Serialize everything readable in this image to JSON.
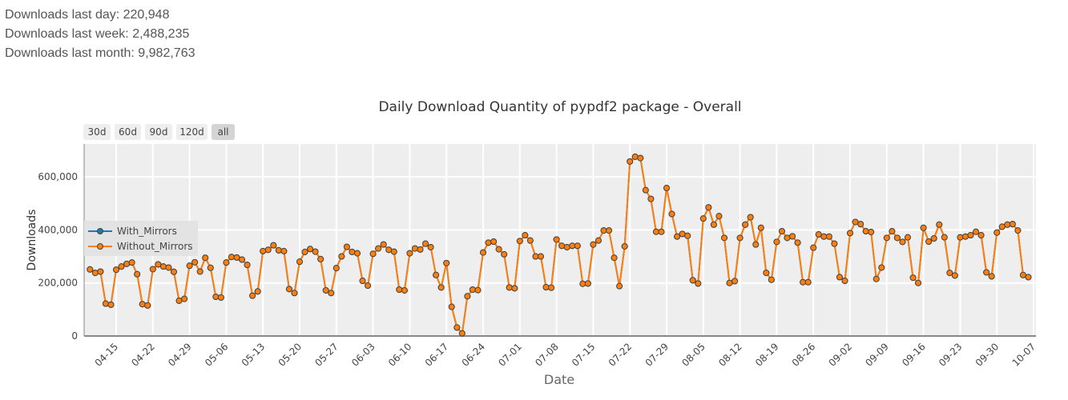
{
  "stats": {
    "day": "Downloads last day: 220,948",
    "week": "Downloads last week: 2,488,235",
    "month": "Downloads last month: 9,982,763"
  },
  "range_buttons": [
    {
      "label": "30d",
      "active": false
    },
    {
      "label": "60d",
      "active": false
    },
    {
      "label": "90d",
      "active": false
    },
    {
      "label": "120d",
      "active": false
    },
    {
      "label": "all",
      "active": true
    }
  ],
  "chart_data": {
    "type": "line",
    "title": "Daily Download Quantity of pypdf2 package - Overall",
    "xlabel": "Date",
    "ylabel": "Downloads",
    "ylim": [
      0,
      724000
    ],
    "yticks": [
      0,
      200000,
      400000,
      600000
    ],
    "ytick_labels": [
      "0",
      "200,000",
      "400,000",
      "600,000"
    ],
    "xtick_labels": [
      "04-15",
      "04-22",
      "04-29",
      "05-06",
      "05-13",
      "05-20",
      "05-27",
      "06-03",
      "06-10",
      "06-17",
      "06-24",
      "07-01",
      "07-08",
      "07-15",
      "07-22",
      "07-29",
      "08-05",
      "08-12",
      "08-19",
      "08-26",
      "09-02",
      "09-09",
      "09-16",
      "09-23",
      "09-30",
      "10-07"
    ],
    "grid": true,
    "legend_position": "left-middle",
    "x_start": "2024-04-10",
    "colors": {
      "With_Mirrors": "#1f77b4",
      "Without_Mirrors": "#ff7f0e"
    },
    "series": [
      {
        "name": "With_Mirrors"
      },
      {
        "name": "Without_Mirrors"
      }
    ],
    "values": [
      251000,
      238000,
      243000,
      122000,
      118000,
      250000,
      262000,
      272000,
      277000,
      233000,
      120000,
      115000,
      252000,
      270000,
      262000,
      258000,
      242000,
      133000,
      140000,
      265000,
      278000,
      243000,
      295000,
      257000,
      148000,
      145000,
      277000,
      298000,
      296000,
      288000,
      268000,
      152000,
      168000,
      320000,
      325000,
      342000,
      323000,
      320000,
      177000,
      162000,
      280000,
      317000,
      328000,
      318000,
      290000,
      172000,
      162000,
      256000,
      300000,
      336000,
      317000,
      312000,
      208000,
      190000,
      310000,
      330000,
      345000,
      325000,
      318000,
      175000,
      172000,
      312000,
      330000,
      326000,
      348000,
      335000,
      230000,
      183000,
      275000,
      110000,
      32000,
      10000,
      150000,
      175000,
      173000,
      315000,
      352000,
      356000,
      327000,
      308000,
      183000,
      180000,
      358000,
      380000,
      360000,
      300000,
      300000,
      184000,
      182000,
      364000,
      340000,
      335000,
      340000,
      340000,
      197000,
      198000,
      345000,
      360000,
      398000,
      398000,
      295000,
      188000,
      338000,
      658000,
      676000,
      671000,
      550000,
      517000,
      393000,
      393000,
      558000,
      460000,
      375000,
      385000,
      378000,
      210000,
      198000,
      443000,
      485000,
      420000,
      452000,
      370000,
      200000,
      207000,
      370000,
      420000,
      448000,
      345000,
      408000,
      238000,
      212000,
      355000,
      395000,
      370000,
      376000,
      352000,
      203000,
      203000,
      333000,
      383000,
      375000,
      375000,
      348000,
      222000,
      208000,
      388000,
      430000,
      422000,
      395000,
      392000,
      215000,
      258000,
      370000,
      395000,
      370000,
      355000,
      372000,
      220000,
      200000,
      408000,
      356000,
      368000,
      420000,
      372000,
      238000,
      228000,
      372000,
      375000,
      380000,
      393000,
      380000,
      240000,
      225000,
      390000,
      412000,
      420000,
      422000,
      398000,
      230000,
      222000
    ]
  }
}
